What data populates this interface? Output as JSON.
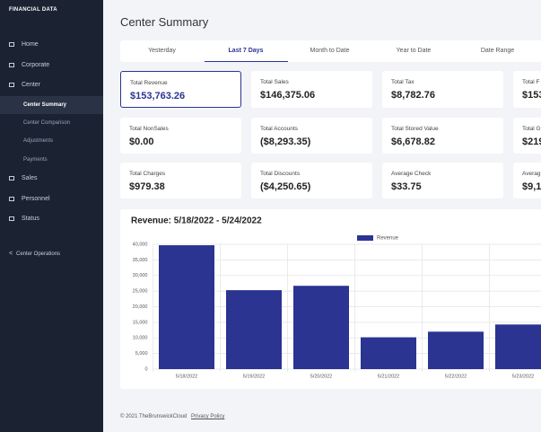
{
  "sidebar": {
    "brand": "FINANCIAL DATA",
    "items": [
      {
        "label": "Home",
        "sub": false,
        "active": false
      },
      {
        "label": "Corporate",
        "sub": false,
        "active": false
      },
      {
        "label": "Center",
        "sub": false,
        "active": false
      },
      {
        "label": "Center Summary",
        "sub": true,
        "active": true
      },
      {
        "label": "Center Comparison",
        "sub": true,
        "active": false
      },
      {
        "label": "Adjustments",
        "sub": true,
        "active": false
      },
      {
        "label": "Payments",
        "sub": true,
        "active": false
      },
      {
        "label": "Sales",
        "sub": false,
        "active": false
      },
      {
        "label": "Personnel",
        "sub": false,
        "active": false
      },
      {
        "label": "Status",
        "sub": false,
        "active": false
      }
    ],
    "back_link": "Center Operations"
  },
  "header": {
    "title": "Center Summary"
  },
  "tabs": {
    "items": [
      "Yesterday",
      "Last 7 Days",
      "Month to Date",
      "Year to Date",
      "Date Range"
    ],
    "active": 1
  },
  "cards": {
    "active": 0,
    "items": [
      {
        "label": "Total Revenue",
        "value": "$153,763.26"
      },
      {
        "label": "Total Sales",
        "value": "$146,375.06"
      },
      {
        "label": "Total Tax",
        "value": "$8,782.76"
      },
      {
        "label": "Total F",
        "value": "$153"
      },
      {
        "label": "Total NonSales",
        "value": "$0.00"
      },
      {
        "label": "Total Accounts",
        "value": "($8,293.35)"
      },
      {
        "label": "Total Stored Value",
        "value": "$6,678.82"
      },
      {
        "label": "Total G",
        "value": "$219"
      },
      {
        "label": "Total Charges",
        "value": "$979.38"
      },
      {
        "label": "Total Discounts",
        "value": "($4,250.65)"
      },
      {
        "label": "Average Check",
        "value": "$33.75"
      },
      {
        "label": "Averag",
        "value": "$9,1"
      }
    ]
  },
  "chart_data": {
    "type": "bar",
    "title": "Revenue: 5/18/2022 - 5/24/2022",
    "categories": [
      "5/18/2022",
      "5/19/2022",
      "5/20/2022",
      "5/21/2022",
      "5/22/2022",
      "5/23/2022"
    ],
    "series": [
      {
        "name": "Revenue",
        "color": "#2b3491",
        "values": [
          39700,
          25300,
          26700,
          10200,
          12000,
          14300
        ]
      }
    ],
    "ylim": [
      0,
      40000
    ],
    "yticks": [
      0,
      {
        "value": 5000,
        "label": "5,000"
      },
      {
        "value": 10000,
        "label": "10,000"
      },
      {
        "value": 15000,
        "label": "15,000"
      },
      {
        "value": 20000,
        "label": "20,000"
      },
      {
        "value": 25000,
        "label": "25,000"
      },
      {
        "value": 30000,
        "label": "30,000"
      },
      {
        "value": 35000,
        "label": "35,000"
      },
      {
        "value": 40000,
        "label": "40,000"
      }
    ],
    "grid": true,
    "legend": "top"
  },
  "footer": {
    "copyright": "© 2021 TheBrunswickCloud",
    "link": "Privacy Policy"
  }
}
